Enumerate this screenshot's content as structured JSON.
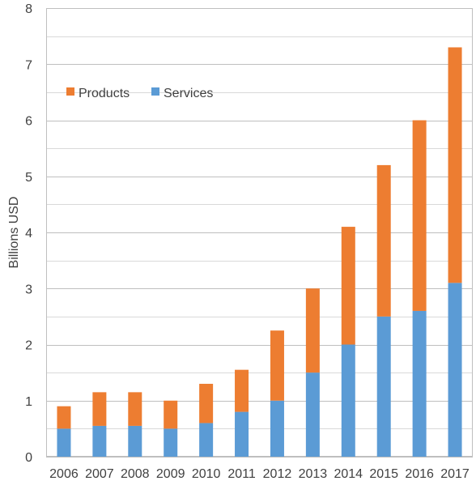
{
  "chart_data": {
    "type": "bar",
    "stacked": true,
    "title": "",
    "xlabel": "",
    "ylabel": "Billions USD",
    "ylim": [
      0,
      8
    ],
    "yticks": [
      "0",
      "1",
      "2",
      "3",
      "4",
      "5",
      "6",
      "7",
      "8"
    ],
    "grid": true,
    "legend_position": "top-left",
    "categories": [
      "2006",
      "2007",
      "2008",
      "2009",
      "2010",
      "2011",
      "2012",
      "2013",
      "2014",
      "2015",
      "2016",
      "2017"
    ],
    "series": [
      {
        "name": "Services",
        "color": "#5B9BD5",
        "values": [
          0.5,
          0.55,
          0.55,
          0.5,
          0.6,
          0.8,
          1.0,
          1.5,
          2.0,
          2.5,
          2.6,
          3.1
        ]
      },
      {
        "name": "Products",
        "color": "#ED7D31",
        "values": [
          0.4,
          0.6,
          0.6,
          0.5,
          0.7,
          0.75,
          1.25,
          1.5,
          2.1,
          2.7,
          3.4,
          4.2
        ]
      }
    ],
    "legend_order": [
      "Products",
      "Services"
    ]
  }
}
